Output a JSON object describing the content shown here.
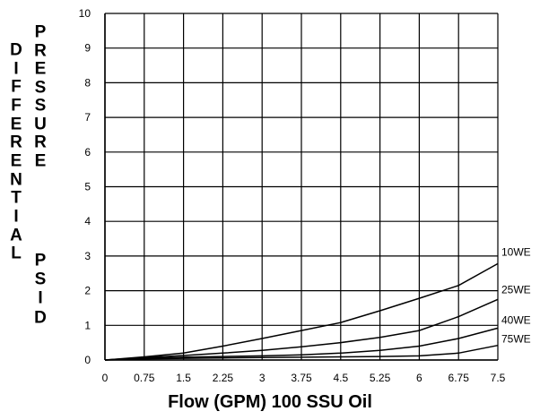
{
  "chart_data": {
    "type": "line",
    "title": "",
    "xlabel": "Flow (GPM) 100 SSU Oil",
    "ylabel_left": "DIFFERENTIAL",
    "ylabel_right": "PRESSURE PSID",
    "x_ticks": [
      "0",
      "0.75",
      "1.5",
      "2.25",
      "3",
      "3.75",
      "4.5",
      "5.25",
      "6",
      "6.75",
      "7.5"
    ],
    "y_ticks": [
      "0",
      "1",
      "2",
      "3",
      "4",
      "5",
      "6",
      "7",
      "8",
      "9",
      "10"
    ],
    "xlim": [
      0,
      7.5
    ],
    "ylim": [
      0,
      10
    ],
    "grid": true,
    "legend": "labels at right end of lines",
    "series": [
      {
        "name": "10WE",
        "x": [
          0,
          0.75,
          1.5,
          2.25,
          3,
          3.75,
          4.5,
          5.25,
          6,
          6.75,
          7.5
        ],
        "y": [
          0,
          0.09,
          0.2,
          0.4,
          0.62,
          0.85,
          1.08,
          1.42,
          1.78,
          2.15,
          2.78
        ]
      },
      {
        "name": "25WE",
        "x": [
          0,
          0.75,
          1.5,
          2.25,
          3,
          3.75,
          4.5,
          5.25,
          6,
          6.75,
          7.5
        ],
        "y": [
          0,
          0.07,
          0.13,
          0.2,
          0.28,
          0.38,
          0.5,
          0.65,
          0.85,
          1.25,
          1.75
        ]
      },
      {
        "name": "40WE",
        "x": [
          0,
          0.75,
          1.5,
          2.25,
          3,
          3.75,
          4.5,
          5.25,
          6,
          6.75,
          7.5
        ],
        "y": [
          0,
          0.05,
          0.08,
          0.1,
          0.12,
          0.15,
          0.2,
          0.28,
          0.4,
          0.62,
          0.92
        ]
      },
      {
        "name": "75WE",
        "x": [
          0,
          0.75,
          1.5,
          2.25,
          3,
          3.75,
          4.5,
          5.25,
          6,
          6.75,
          7.5
        ],
        "y": [
          0,
          0.03,
          0.05,
          0.06,
          0.07,
          0.08,
          0.09,
          0.1,
          0.12,
          0.2,
          0.42
        ]
      }
    ],
    "colors": {
      "line": "#000000",
      "grid": "#000000",
      "background": "#ffffff"
    }
  }
}
